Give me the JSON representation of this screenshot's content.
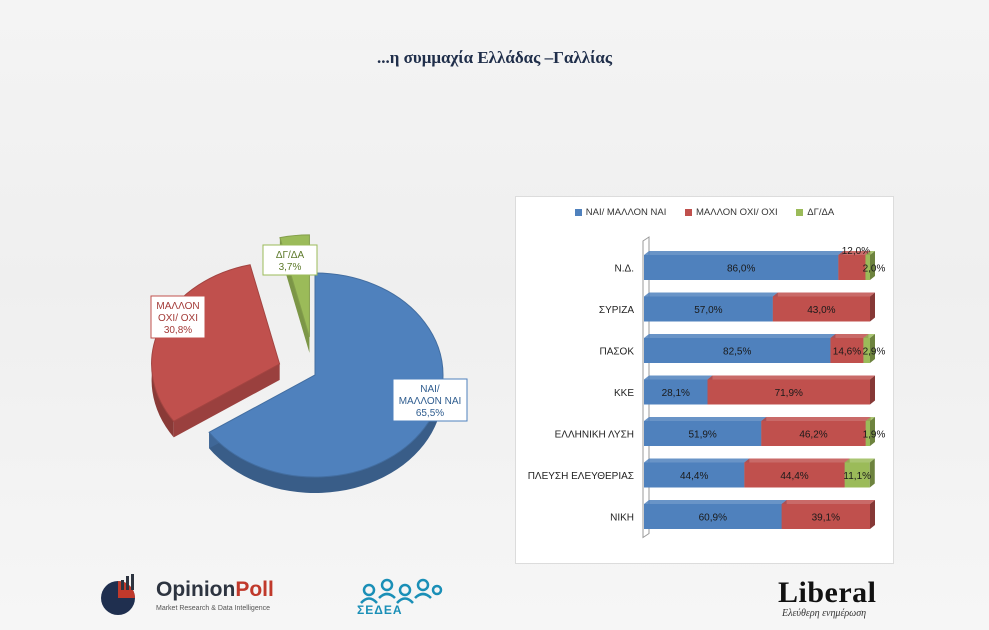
{
  "title": "...η συμμαχία Ελλάδας –Γαλλίας",
  "colors": {
    "blue": "#4f81bd",
    "red": "#c0504d",
    "green": "#9bbb59"
  },
  "chart_data": [
    {
      "type": "pie",
      "title": "",
      "slices": [
        {
          "name": "ΝΑΙ/ ΜΑΛΛΟΝ ΝΑΙ",
          "label_lines": [
            "ΝΑΙ/",
            "ΜΑΛΛΟΝ ΝΑΙ",
            "65,5%"
          ],
          "value": 65.5
        },
        {
          "name": "ΜΑΛΛΟΝ ΟΧΙ/ ΟΧΙ",
          "label_lines": [
            "ΜΑΛΛΟΝ",
            "ΟΧΙ/ ΟΧΙ",
            "30,8%"
          ],
          "value": 30.8
        },
        {
          "name": "ΔΓ/ΔΑ",
          "label_lines": [
            "ΔΓ/ΔΑ",
            "3,7%"
          ],
          "value": 3.7
        }
      ]
    },
    {
      "type": "bar",
      "orientation": "horizontal",
      "stacked": true,
      "title": "",
      "legend_position": "top",
      "categories": [
        "Ν.Δ.",
        "ΣΥΡΙΖΑ",
        "ΠΑΣΟΚ",
        "ΚΚΕ",
        "ΕΛΛΗΝΙΚΗ ΛΥΣΗ",
        "ΠΛΕΥΣΗ ΕΛΕΥΘΕΡΙΑΣ",
        "ΝΙΚΗ"
      ],
      "series": [
        {
          "name": "ΝΑΙ/ ΜΑΛΛΟΝ ΝΑΙ",
          "values": [
            86.0,
            57.0,
            82.5,
            28.1,
            51.9,
            44.4,
            60.9
          ],
          "labels": [
            "86,0%",
            "57,0%",
            "82,5%",
            "28,1%",
            "51,9%",
            "44,4%",
            "60,9%"
          ]
        },
        {
          "name": "ΜΑΛΛΟΝ ΟΧΙ/ ΟΧΙ",
          "values": [
            12.0,
            43.0,
            14.6,
            71.9,
            46.2,
            44.4,
            39.1
          ],
          "labels": [
            "12,0%",
            "43,0%",
            "14,6%",
            "71,9%",
            "46,2%",
            "44,4%",
            "39,1%"
          ]
        },
        {
          "name": "ΔΓ/ΔΑ",
          "values": [
            2.0,
            0,
            2.9,
            0,
            1.9,
            11.1,
            0
          ],
          "labels": [
            "2,0%",
            "",
            "2,9%",
            "",
            "1,9%",
            "11,1%",
            ""
          ]
        }
      ],
      "xlim": [
        0,
        100
      ]
    }
  ],
  "logos": {
    "opinion_prefix": "Opinion",
    "opinion_suffix": "Poll",
    "opinion_tagline": "Market Research & Data Intelligence",
    "sedea": "ΣΕΔΕΑ",
    "liberal": "Liberal",
    "liberal_tagline": "Ελεύθερη ενημέρωση"
  }
}
